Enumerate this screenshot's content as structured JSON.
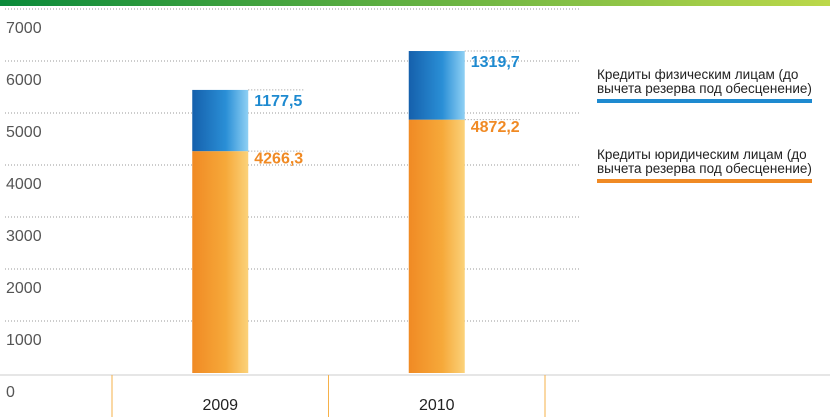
{
  "chart_data": {
    "type": "stacked_bar",
    "categories": [
      "2009",
      "2010"
    ],
    "series": [
      {
        "name": "Кредиты юридическим лицам (до вычета резерва под обесценение)",
        "color": "#f08a24",
        "values": [
          4266.3,
          4872.2
        ],
        "value_labels": [
          "4266,3",
          "4872,2"
        ]
      },
      {
        "name": "Кредиты физическим лицам (до вычета резерва под обесценение)",
        "color": "#1e8ad0",
        "values": [
          1177.5,
          1319.7
        ],
        "value_labels": [
          "1177,5",
          "1319,7"
        ]
      }
    ],
    "ylim": [
      0,
      7000
    ],
    "yticks": [
      0,
      1000,
      2000,
      3000,
      4000,
      5000,
      6000,
      7000
    ],
    "grid": true
  }
}
